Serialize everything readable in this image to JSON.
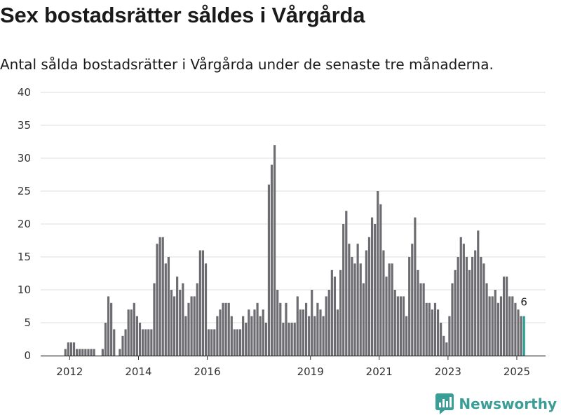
{
  "title": "Sex bostadsrätter såldes i Vårgårda",
  "subtitle": "Antal sålda bostadsrätter i Vårgårda under de senaste tre månaderna.",
  "brand": {
    "name": "Newsworthy",
    "icon": "newsworthy-logo-icon"
  },
  "colors": {
    "bar": "#6d6c71",
    "highlight": "#2a9d94",
    "grid": "#dedede",
    "brand": "#3a9e96"
  },
  "chart_data": {
    "type": "bar",
    "title": "",
    "xlabel": "",
    "ylabel": "",
    "ylim": [
      0,
      40
    ],
    "yticks": [
      0,
      5,
      10,
      15,
      20,
      25,
      30,
      35,
      40
    ],
    "xticks": [
      "2012",
      "2014",
      "2016",
      "2019",
      "2021",
      "2023",
      "2025"
    ],
    "grid": true,
    "legend": "none",
    "start_month": "2011-04",
    "highlight_last": true,
    "last_label": "6",
    "values": [
      0,
      0,
      0,
      0,
      0,
      0,
      0,
      1,
      2,
      2,
      2,
      1,
      1,
      1,
      1,
      1,
      1,
      1,
      0,
      0,
      1,
      5,
      9,
      8,
      4,
      0,
      1,
      3,
      4,
      7,
      7,
      8,
      6,
      5,
      4,
      4,
      4,
      4,
      11,
      17,
      18,
      18,
      14,
      15,
      10,
      9,
      12,
      10,
      11,
      6,
      8,
      9,
      9,
      11,
      16,
      16,
      14,
      4,
      4,
      4,
      6,
      7,
      8,
      8,
      8,
      6,
      4,
      4,
      4,
      6,
      5,
      7,
      6,
      7,
      8,
      6,
      7,
      5,
      26,
      29,
      32,
      10,
      8,
      5,
      8,
      5,
      5,
      5,
      9,
      7,
      7,
      8,
      6,
      10,
      6,
      8,
      7,
      6,
      9,
      10,
      13,
      12,
      7,
      13,
      20,
      22,
      17,
      15,
      14,
      17,
      14,
      11,
      16,
      18,
      21,
      20,
      25,
      23,
      16,
      12,
      14,
      14,
      10,
      9,
      9,
      9,
      6,
      15,
      17,
      21,
      13,
      11,
      11,
      8,
      8,
      7,
      8,
      7,
      5,
      3,
      2,
      6,
      11,
      13,
      15,
      18,
      17,
      15,
      13,
      15,
      16,
      19,
      15,
      14,
      11,
      9,
      9,
      10,
      8,
      9,
      12,
      12,
      9,
      9,
      8,
      7,
      6,
      6
    ]
  }
}
